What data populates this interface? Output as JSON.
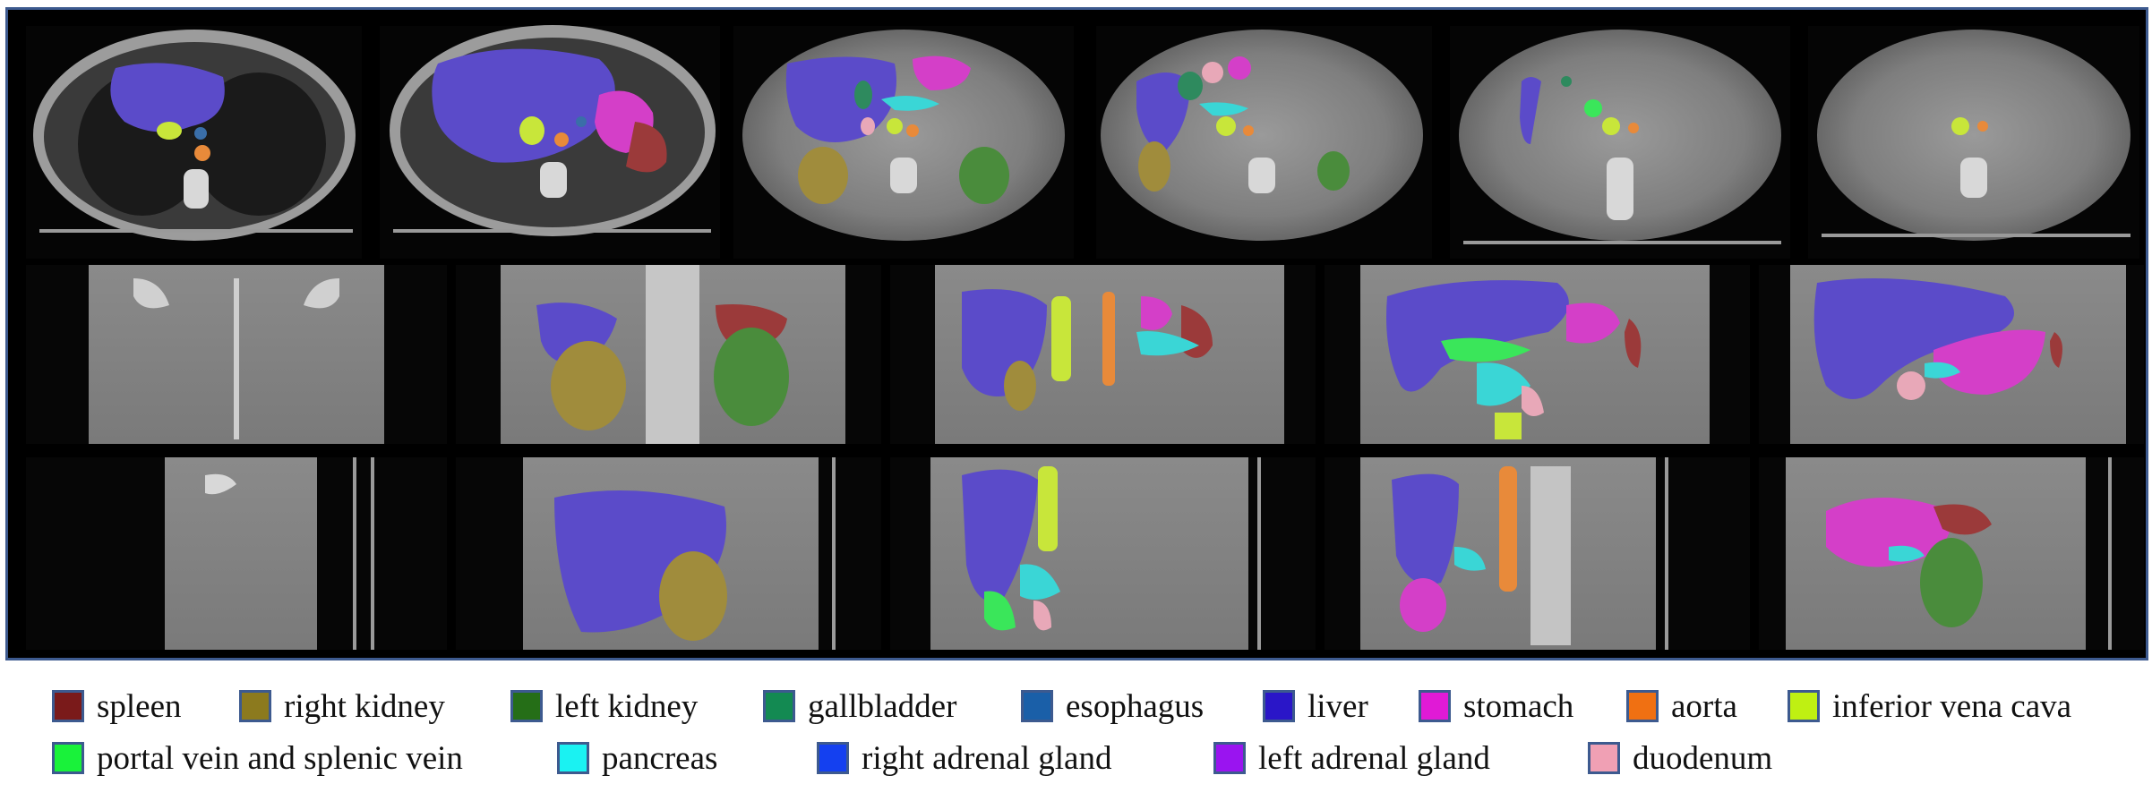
{
  "legend": {
    "row1": [
      {
        "label": "spleen",
        "color": "#7a1a1a"
      },
      {
        "label": "right kidney",
        "color": "#8c7a1e"
      },
      {
        "label": "left kidney",
        "color": "#256e17"
      },
      {
        "label": "gallbladder",
        "color": "#138a52"
      },
      {
        "label": "esophagus",
        "color": "#1a5fa8"
      },
      {
        "label": "liver",
        "color": "#2a16c8"
      },
      {
        "label": "stomach",
        "color": "#e01ad6"
      },
      {
        "label": "aorta",
        "color": "#f07012"
      },
      {
        "label": "inferior vena cava",
        "color": "#bff012"
      }
    ],
    "row2": [
      {
        "label": "portal vein and splenic vein",
        "color": "#19f23a"
      },
      {
        "label": "pancreas",
        "color": "#1af2f2"
      },
      {
        "label": "right adrenal gland",
        "color": "#1440f0"
      },
      {
        "label": "left adrenal gland",
        "color": "#9a14f0"
      },
      {
        "label": "duodenum",
        "color": "#f0a0b4"
      }
    ]
  },
  "organ_colors": {
    "liver": "#5b4bc9",
    "spleen": "#9b3a3a",
    "right_kidney": "#a08c3c",
    "left_kidney": "#4a8c3c",
    "gallbladder": "#2e8a5e",
    "stomach": "#d43fc8",
    "aorta": "#e88a3a",
    "ivc": "#c8e63a",
    "portal_vein": "#3ae65a",
    "pancreas": "#3ad6d6",
    "duodenum": "#e8a8b8",
    "esophagus": "#3a6ea8"
  }
}
